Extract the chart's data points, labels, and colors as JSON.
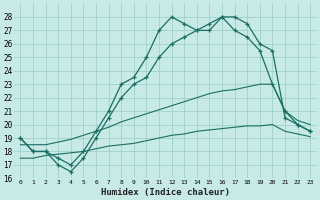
{
  "xlabel": "Humidex (Indice chaleur)",
  "bg_color": "#c8eae6",
  "grid_color": "#a0d0cc",
  "line_color": "#1a6e64",
  "xlim": [
    -0.5,
    23.5
  ],
  "ylim": [
    16,
    29
  ],
  "yticks": [
    16,
    17,
    18,
    19,
    20,
    21,
    22,
    23,
    24,
    25,
    26,
    27,
    28
  ],
  "xticks": [
    0,
    1,
    2,
    3,
    4,
    5,
    6,
    7,
    8,
    9,
    10,
    11,
    12,
    13,
    14,
    15,
    16,
    17,
    18,
    19,
    20,
    21,
    22,
    23
  ],
  "curves": [
    {
      "x": [
        0,
        1,
        2,
        3,
        4,
        5,
        6,
        7,
        8,
        9,
        10,
        11,
        12,
        13,
        14,
        15,
        16,
        17,
        18,
        19,
        20,
        21,
        22,
        23
      ],
      "y": [
        19,
        18,
        18,
        17,
        16.5,
        17.5,
        19,
        20.5,
        22,
        23,
        23.5,
        25,
        26,
        26.5,
        27,
        27.5,
        28,
        28,
        27.5,
        26,
        25.5,
        20.5,
        20,
        19.5
      ],
      "has_markers": true
    },
    {
      "x": [
        0,
        1,
        2,
        3,
        4,
        5,
        6,
        7,
        8,
        9,
        10,
        11,
        12,
        13,
        14,
        15,
        16,
        17,
        18,
        19,
        20,
        21,
        22,
        23
      ],
      "y": [
        19,
        18,
        18,
        17.5,
        17,
        18,
        19.5,
        21,
        23,
        23.5,
        25,
        27,
        28,
        27.5,
        27,
        27,
        28,
        27,
        26.5,
        25.5,
        23,
        21,
        20,
        19.5
      ],
      "has_markers": true
    },
    {
      "x": [
        0,
        1,
        2,
        3,
        4,
        5,
        6,
        7,
        8,
        9,
        10,
        11,
        12,
        13,
        14,
        15,
        16,
        17,
        18,
        19,
        20,
        21,
        22,
        23
      ],
      "y": [
        17.5,
        17.5,
        17.7,
        17.8,
        17.9,
        18.0,
        18.2,
        18.4,
        18.5,
        18.6,
        18.8,
        19.0,
        19.2,
        19.3,
        19.5,
        19.6,
        19.7,
        19.8,
        19.9,
        19.9,
        20.0,
        19.5,
        19.3,
        19.1
      ],
      "has_markers": false
    },
    {
      "x": [
        0,
        1,
        2,
        3,
        4,
        5,
        6,
        7,
        8,
        9,
        10,
        11,
        12,
        13,
        14,
        15,
        16,
        17,
        18,
        19,
        20,
        21,
        22,
        23
      ],
      "y": [
        18.5,
        18.5,
        18.5,
        18.7,
        18.9,
        19.2,
        19.5,
        19.8,
        20.2,
        20.5,
        20.8,
        21.1,
        21.4,
        21.7,
        22.0,
        22.3,
        22.5,
        22.6,
        22.8,
        23.0,
        23.0,
        21.0,
        20.3,
        20.0
      ],
      "has_markers": false
    }
  ]
}
